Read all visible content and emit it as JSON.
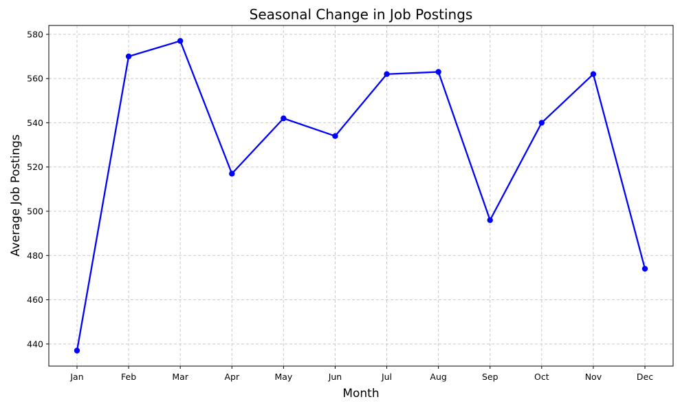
{
  "chart_data": {
    "type": "line",
    "title": "Seasonal Change in Job Postings",
    "xlabel": "Month",
    "ylabel": "Average Job Postings",
    "categories": [
      "Jan",
      "Feb",
      "Mar",
      "Apr",
      "May",
      "Jun",
      "Jul",
      "Aug",
      "Sep",
      "Oct",
      "Nov",
      "Dec"
    ],
    "series": [
      {
        "values": [
          437,
          570,
          577,
          517,
          542,
          534,
          562,
          563,
          496,
          540,
          562,
          474
        ],
        "color": "#0000ff",
        "marker": "circle"
      }
    ],
    "ylim": [
      430,
      584
    ],
    "yticks": [
      440,
      460,
      480,
      500,
      520,
      540,
      560,
      580
    ],
    "grid": true,
    "legend": "none"
  }
}
